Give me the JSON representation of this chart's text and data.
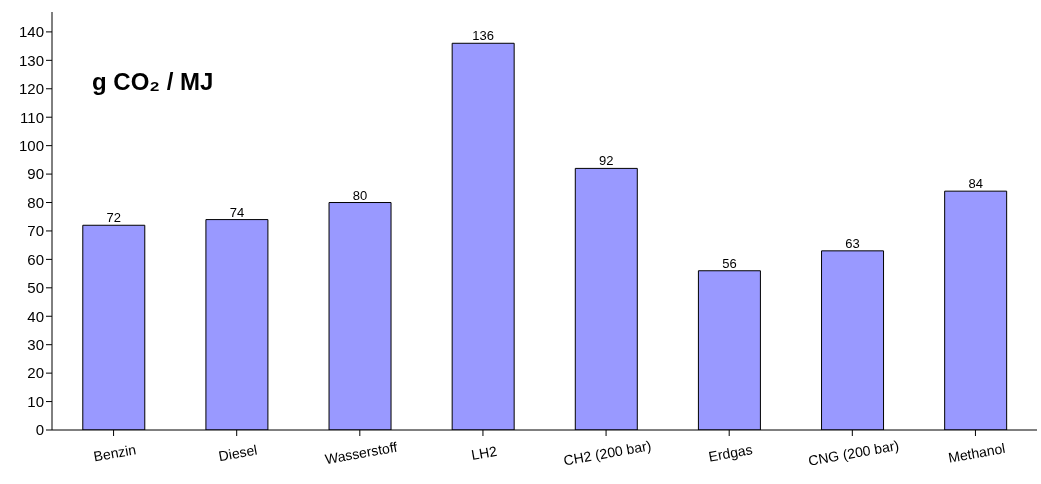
{
  "chart_data": {
    "type": "bar",
    "title": "g CO₂ / MJ",
    "categories": [
      "Benzin",
      "Diesel",
      "Wasserstoff",
      "LH2",
      "CH2 (200 bar)",
      "Erdgas",
      "CNG (200 bar)",
      "Methanol"
    ],
    "values": [
      72,
      74,
      80,
      136,
      92,
      56,
      63,
      84
    ],
    "color": "#9999ff",
    "ylim": [
      0,
      147
    ],
    "yticks": [
      0,
      10,
      20,
      30,
      40,
      50,
      60,
      70,
      80,
      90,
      100,
      110,
      120,
      130,
      140
    ],
    "grid": false,
    "legend": false,
    "data_labels": true
  }
}
